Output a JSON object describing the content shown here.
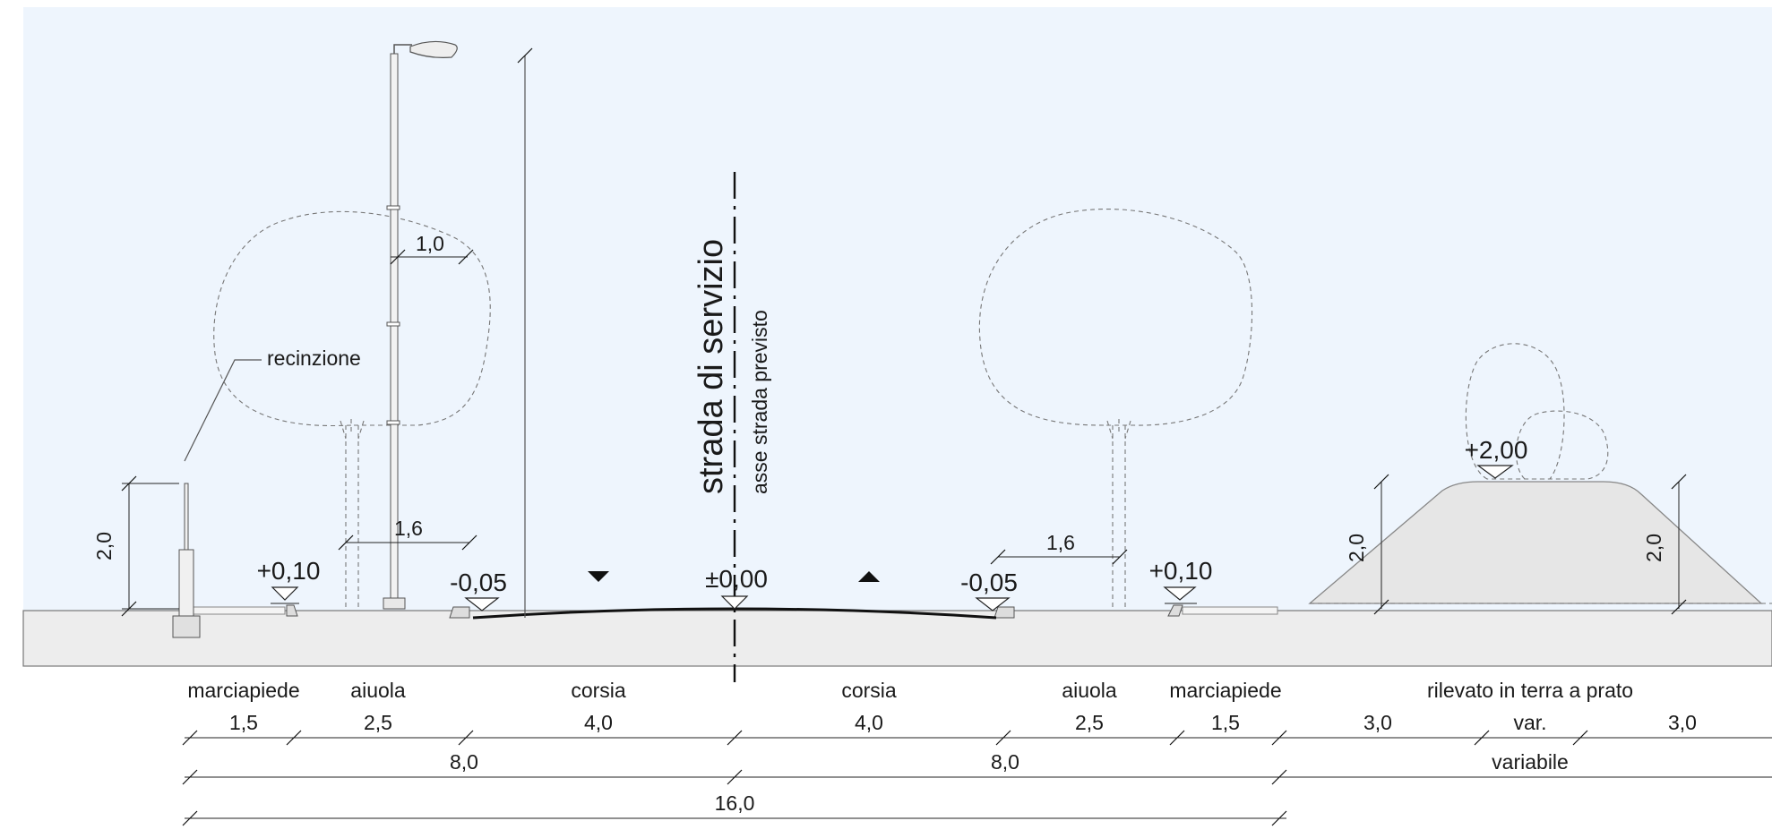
{
  "labels": {
    "fence": "recinzione",
    "service_road": "strada di servizio",
    "axis_note": "asse strada previsto",
    "sidewalk_left": "marciapiede",
    "bed_left": "aiuola",
    "lane_left": "corsia",
    "lane_right": "corsia",
    "bed_right": "aiuola",
    "sidewalk_right": "marciapiede",
    "embankment": "rilevato in terra a prato"
  },
  "levels": {
    "sidewalk_left": "+0,10",
    "curb_left": "-0,05",
    "axis": "±0,00",
    "curb_right": "-0,05",
    "sidewalk_right": "+0,10",
    "embankment_top": "+2,00"
  },
  "dimensions": {
    "row1": {
      "sidewalk_left": "1,5",
      "bed_left": "2,5",
      "lane_left": "4,0",
      "lane_right": "4,0",
      "bed_right": "2,5",
      "sidewalk_right": "1,5",
      "emb_slope_left": "3,0",
      "emb_top": "var.",
      "emb_slope_right": "3,0"
    },
    "row2": {
      "half_left": "8,0",
      "half_right": "8,0",
      "embankment": "variabile"
    },
    "row3": {
      "total": "16,0"
    },
    "fence_height": "2,0",
    "lamp_arm": "1,0",
    "tree_left_offset": "1,6",
    "tree_right_offset": "1,6",
    "emb_height_left": "2,0",
    "emb_height_right": "2,0"
  },
  "colors": {
    "sky": "#eef5fd",
    "ground": "#ededed",
    "line": "#1a1a1a"
  }
}
